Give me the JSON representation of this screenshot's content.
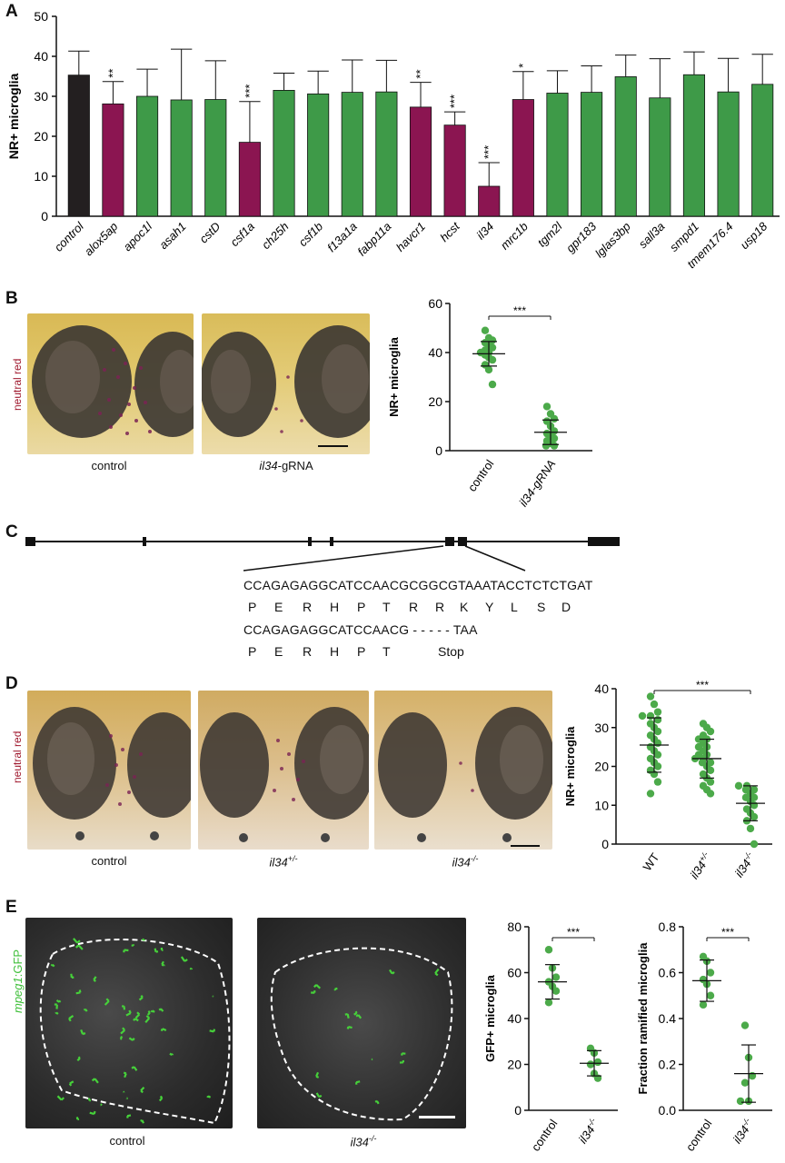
{
  "panels": {
    "a": "A",
    "b": "B",
    "c": "C",
    "d": "D",
    "e": "E"
  },
  "colors": {
    "control": "#231f20",
    "hit": "#8b1551",
    "nohit": "#3e9a48",
    "dot": "#4caa4a",
    "neutral_red": "#a0192e",
    "gfp": "#3fbf3a"
  },
  "panelA": {
    "chart_data": {
      "type": "bar",
      "ylabel": "NR+ microglia",
      "ylim": [
        0,
        50
      ],
      "yticks": [
        0,
        10,
        20,
        30,
        40,
        50
      ],
      "categories": [
        "control",
        "alox5ap",
        "apoc1l",
        "asah1",
        "cstD",
        "csf1a",
        "ch25h",
        "csf1b",
        "f13a1a",
        "fabp11a",
        "havcr1",
        "hcst",
        "il34",
        "mrc1b",
        "tgm2l",
        "gpr183",
        "lglas3bp",
        "sall3a",
        "smpd1",
        "tmem176.4",
        "usp18"
      ],
      "values": [
        35.3,
        28.1,
        30.0,
        29.1,
        29.2,
        18.5,
        31.5,
        30.6,
        31.0,
        31.1,
        27.3,
        22.8,
        7.5,
        29.2,
        30.8,
        31.0,
        34.9,
        29.6,
        35.4,
        31.1,
        33.0
      ],
      "errors": [
        6.0,
        5.6,
        6.8,
        12.7,
        9.7,
        10.2,
        4.3,
        5.7,
        8.1,
        7.9,
        6.2,
        3.3,
        5.9,
        7.0,
        5.6,
        6.6,
        5.4,
        9.8,
        5.7,
        8.4,
        7.5
      ],
      "group": [
        "control",
        "hit",
        "nohit",
        "nohit",
        "nohit",
        "hit",
        "nohit",
        "nohit",
        "nohit",
        "nohit",
        "hit",
        "hit",
        "hit",
        "hit",
        "nohit",
        "nohit",
        "nohit",
        "nohit",
        "nohit",
        "nohit",
        "nohit"
      ],
      "significance": [
        "",
        "**",
        "",
        "",
        "",
        "***",
        "",
        "",
        "",
        "",
        "**",
        "***",
        "***",
        "*",
        "",
        "",
        "",
        "",
        "",
        "",
        ""
      ]
    }
  },
  "panelB": {
    "stain_label": "neutral red",
    "captions": [
      {
        "pre": "control",
        "it": "",
        "post": ""
      },
      {
        "pre": "",
        "it": "il34",
        "post": "-gRNA"
      }
    ],
    "chart_data": {
      "type": "scatter",
      "ylabel": "NR+ microglia",
      "ylim": [
        0,
        60
      ],
      "yticks": [
        0,
        20,
        40,
        60
      ],
      "categories": [
        "control",
        "il34-gRNA"
      ],
      "groups": [
        {
          "name": "control",
          "values": [
            49,
            46,
            45,
            44,
            43,
            42,
            41,
            40,
            40,
            39,
            38,
            37,
            35,
            33,
            27
          ],
          "mean": 39.5,
          "sd": 5.0
        },
        {
          "name": "il34-gRNA",
          "values": [
            18,
            15,
            13,
            12,
            10,
            8,
            7,
            6,
            5,
            4,
            3,
            2,
            2
          ],
          "mean": 7.5,
          "sd": 5.0
        }
      ],
      "significance": "***"
    }
  },
  "panelC": {
    "wt_sequence": "CCAGAGAGGCATCCAACGCGGCGTAAATACCTCTCTGAT",
    "wt_aa": [
      "P",
      "E",
      "R",
      "H",
      "P",
      "T",
      "R",
      "R",
      "K",
      "Y",
      "L",
      "S",
      "D"
    ],
    "mut_sequence": "CCAGAGAGGCATCCAACG - - - - - TAA",
    "mut_aa": [
      "P",
      "E",
      "R",
      "H",
      "P",
      "T",
      "Stop"
    ]
  },
  "panelD": {
    "stain_label": "neutral red",
    "captions": [
      {
        "pre": "control",
        "it": "",
        "sup": ""
      },
      {
        "pre": "",
        "it": "il34",
        "sup": "+/-"
      },
      {
        "pre": "",
        "it": "il34",
        "sup": "-/-"
      }
    ],
    "chart_data": {
      "type": "scatter",
      "ylabel": "NR+ microglia",
      "ylim": [
        0,
        40
      ],
      "yticks": [
        0,
        10,
        20,
        30,
        40
      ],
      "categories": [
        "WT",
        "il34+/-",
        "il34-/-"
      ],
      "groups": [
        {
          "name": "WT",
          "values": [
            38,
            36,
            34,
            33,
            33,
            32,
            31,
            30,
            29,
            28,
            27,
            26,
            25,
            24,
            23,
            22,
            21,
            20,
            19,
            18,
            16,
            13
          ],
          "mean": 25.5,
          "sd": 7.0
        },
        {
          "name": "il34+/-",
          "values": [
            31,
            30,
            29,
            28,
            27,
            27,
            26,
            25,
            25,
            24,
            23,
            23,
            22,
            22,
            21,
            21,
            20,
            19,
            18,
            17,
            16,
            15,
            14,
            13
          ],
          "mean": 22.0,
          "sd": 5.0
        },
        {
          "name": "il34-/-",
          "values": [
            15,
            15,
            14,
            14,
            13,
            12,
            12,
            11,
            10,
            9,
            8,
            7,
            6,
            4,
            0
          ],
          "mean": 10.5,
          "sd": 4.5
        }
      ],
      "significance": "***"
    }
  },
  "panelE": {
    "gfp_label_it": "mpeg1",
    "gfp_label_rest": ":GFP",
    "captions": [
      {
        "pre": "control",
        "it": "",
        "sup": ""
      },
      {
        "pre": "",
        "it": "il34",
        "sup": "-/-"
      }
    ],
    "chart_data": [
      {
        "type": "scatter",
        "ylabel": "GFP+ microglia",
        "ylim": [
          0,
          80
        ],
        "yticks": [
          0,
          20,
          40,
          60,
          80
        ],
        "categories": [
          "control",
          "il34-/-"
        ],
        "groups": [
          {
            "name": "control",
            "values": [
              70,
              62,
              58,
              56,
              54,
              52,
              47
            ],
            "mean": 56.0,
            "sd": 7.5
          },
          {
            "name": "il34-/-",
            "values": [
              27,
              25,
              21,
              20,
              16,
              14
            ],
            "mean": 20.5,
            "sd": 5.5
          }
        ],
        "significance": "***"
      },
      {
        "type": "scatter",
        "ylabel": "Fraction ramified microglia",
        "ylim": [
          0,
          0.8
        ],
        "yticks": [
          0,
          0.2,
          0.4,
          0.6,
          0.8
        ],
        "ytick_labels": [
          "0.0",
          "0.2",
          "0.4",
          "0.6",
          "0.8"
        ],
        "categories": [
          "control",
          "il34-/-"
        ],
        "groups": [
          {
            "name": "control",
            "values": [
              0.67,
              0.65,
              0.6,
              0.57,
              0.55,
              0.5,
              0.46
            ],
            "mean": 0.565,
            "sd": 0.09
          },
          {
            "name": "il34-/-",
            "values": [
              0.37,
              0.23,
              0.15,
              0.12,
              0.04,
              0.04
            ],
            "mean": 0.16,
            "sd": 0.125
          }
        ],
        "significance": "***"
      }
    ]
  }
}
